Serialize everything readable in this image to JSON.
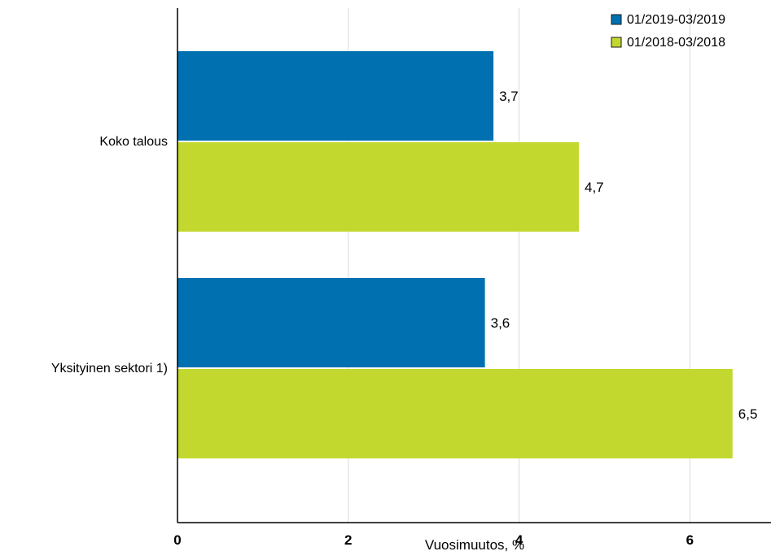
{
  "chart_data": {
    "type": "bar",
    "orientation": "horizontal",
    "categories": [
      "Koko talous",
      "Yksityinen sektori 1)"
    ],
    "series": [
      {
        "name": "01/2019-03/2019",
        "values": [
          3.7,
          3.6
        ],
        "labels": [
          "3,7",
          "3,6"
        ],
        "color": "#0070b0"
      },
      {
        "name": "01/2018-03/2018",
        "values": [
          4.7,
          6.5
        ],
        "labels": [
          "4,7",
          "6,5"
        ],
        "color": "#c2d82e"
      }
    ],
    "x_ticks": [
      "0",
      "2",
      "4",
      "6"
    ],
    "xlim": [
      0,
      6.95
    ],
    "xlabel": "Vuosimuutos, %",
    "ylabel": "",
    "grid": "vertical",
    "legend_position": "top-right"
  }
}
